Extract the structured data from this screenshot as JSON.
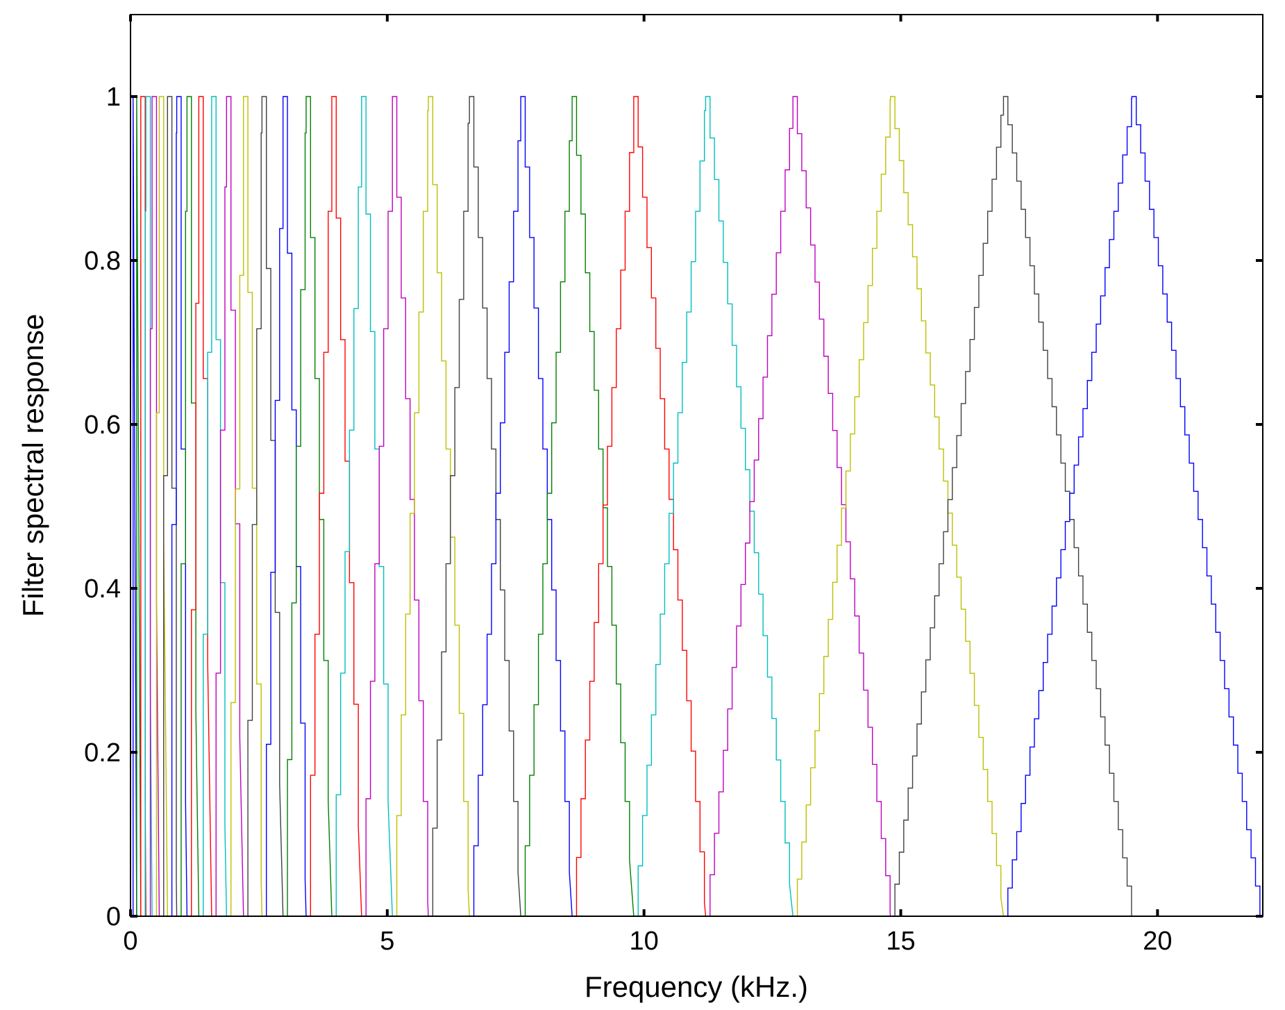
{
  "chart_data": {
    "type": "line",
    "title": "",
    "xlabel": "Frequency (kHz.)",
    "ylabel": "Filter spectral response",
    "xlim": [
      0,
      22.05
    ],
    "ylim": [
      0,
      1.1
    ],
    "xticks": [
      0,
      5,
      10,
      15,
      20
    ],
    "yticks": [
      0,
      0.2,
      0.4,
      0.6,
      0.8,
      1
    ],
    "xtick_labels": [
      "0",
      "5",
      "10",
      "15",
      "20"
    ],
    "ytick_labels": [
      "0",
      "0.2",
      "0.4",
      "0.6",
      "0.8",
      "1"
    ],
    "grid": false,
    "legend": "none",
    "filter_shape": "triangular",
    "center_frequencies_khz": [
      0.05,
      0.12,
      0.2,
      0.3,
      0.42,
      0.56,
      0.72,
      0.9,
      1.1,
      1.33,
      1.58,
      1.87,
      2.2,
      2.56,
      2.97,
      3.42,
      3.92,
      4.5,
      5.1,
      5.8,
      6.6,
      7.6,
      8.6,
      9.8,
      11.2,
      12.9,
      14.8,
      17.0,
      19.5
    ],
    "edge_frequencies_khz": [
      0.0,
      22.0
    ],
    "peak_value": 1,
    "series_colors": [
      "#0000ff",
      "#008000",
      "#ff0000",
      "#00bfbf",
      "#bf00bf",
      "#bfbf00",
      "#404040"
    ]
  }
}
